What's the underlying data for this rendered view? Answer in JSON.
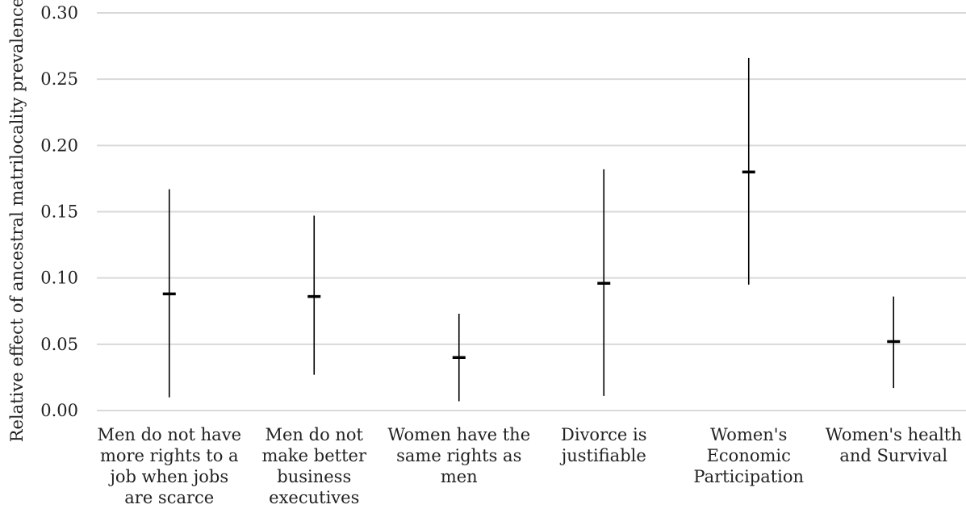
{
  "chart_data": {
    "type": "errorbar",
    "ylabel": "Relative effect of ancestral matrilocality prevalence",
    "ylim": [
      0,
      0.3
    ],
    "yticks": [
      0.0,
      0.05,
      0.1,
      0.15,
      0.2,
      0.25,
      0.3
    ],
    "ytick_labels": [
      "0.00",
      "0.05",
      "0.10",
      "0.15",
      "0.20",
      "0.25",
      "0.30"
    ],
    "grid": true,
    "categories": [
      [
        "Men do not have",
        "more rights to a",
        "job when jobs",
        "are scarce"
      ],
      [
        "Men do not",
        "make better",
        "business",
        "executives"
      ],
      [
        "Women have the",
        "same rights as",
        "men"
      ],
      [
        "Divorce is",
        "justifiable"
      ],
      [
        "Women's",
        "Economic",
        "Participation"
      ],
      [
        "Women's health",
        "and Survival"
      ]
    ],
    "estimates": [
      0.088,
      0.086,
      0.04,
      0.096,
      0.18,
      0.052
    ],
    "lower": [
      0.01,
      0.027,
      0.007,
      0.011,
      0.095,
      0.017
    ],
    "upper": [
      0.167,
      0.147,
      0.073,
      0.182,
      0.266,
      0.086
    ],
    "colors": {
      "grid": "#d9d9d9",
      "mark": "#000000",
      "text": "#222222"
    }
  }
}
